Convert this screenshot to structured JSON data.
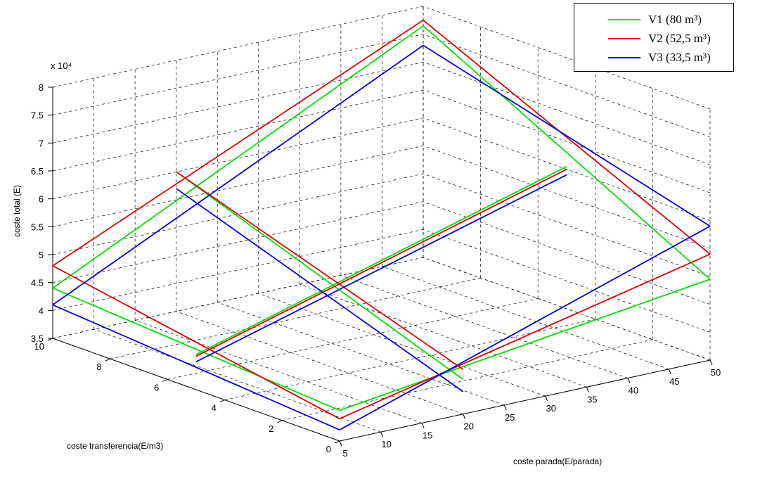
{
  "chart_data": {
    "type": "line3d",
    "title": "",
    "xlabel": "coste parada(E/parada)",
    "ylabel": "coste transferencia(E/m3)",
    "zlabel": "coste total (E)",
    "z_exponent_label": "x 10⁴",
    "xlim": [
      5,
      50
    ],
    "ylim": [
      0,
      10
    ],
    "zlim": [
      35000,
      80000
    ],
    "xticks": [
      "5",
      "10",
      "15",
      "20",
      "25",
      "30",
      "35",
      "40",
      "45",
      "50"
    ],
    "yticks": [
      "0",
      "2",
      "4",
      "6",
      "8",
      "10"
    ],
    "zticks": [
      "3.5",
      "4",
      "4.5",
      "5",
      "5.5",
      "6",
      "6.5",
      "7",
      "7.5",
      "8"
    ],
    "grid": true,
    "legend_position": "top-right",
    "colors": {
      "V1": "#00e000",
      "V2": "#e00000",
      "V3": "#0000e0"
    },
    "series": [
      {
        "name": "V1 (80 m³)",
        "color": "#00e000",
        "edges": [
          {
            "x": [
              5,
              50
            ],
            "y": [
              0,
              0
            ],
            "z": [
              40500,
              49500
            ]
          },
          {
            "x": [
              5,
              50
            ],
            "y": [
              10,
              10
            ],
            "z": [
              44000,
              76500
            ]
          },
          {
            "x": [
              5,
              5
            ],
            "y": [
              0,
              10
            ],
            "z": [
              40500,
              44000
            ]
          },
          {
            "x": [
              50,
              50
            ],
            "y": [
              0,
              10
            ],
            "z": [
              49500,
              76500
            ]
          },
          {
            "x": [
              20,
              20
            ],
            "y": [
              0,
              10
            ],
            "z": [
              41200,
              60000
            ]
          },
          {
            "x": [
              5,
              50
            ],
            "y": [
              5,
              5
            ],
            "z": [
              41300,
              60500
            ]
          }
        ]
      },
      {
        "name": "V2 (52,5 m³)",
        "color": "#e00000",
        "edges": [
          {
            "x": [
              5,
              50
            ],
            "y": [
              0,
              0
            ],
            "z": [
              39000,
              54000
            ]
          },
          {
            "x": [
              5,
              50
            ],
            "y": [
              10,
              10
            ],
            "z": [
              48000,
              77500
            ]
          },
          {
            "x": [
              5,
              5
            ],
            "y": [
              0,
              10
            ],
            "z": [
              39000,
              48000
            ]
          },
          {
            "x": [
              50,
              50
            ],
            "y": [
              0,
              10
            ],
            "z": [
              54000,
              77500
            ]
          },
          {
            "x": [
              20,
              20
            ],
            "y": [
              0,
              10
            ],
            "z": [
              43000,
              60000
            ]
          },
          {
            "x": [
              5,
              50
            ],
            "y": [
              5,
              5
            ],
            "z": [
              41000,
              60000
            ]
          }
        ]
      },
      {
        "name": "V3 (33,5 m³)",
        "color": "#0000e0",
        "edges": [
          {
            "x": [
              5,
              50
            ],
            "y": [
              0,
              0
            ],
            "z": [
              37000,
              59000
            ]
          },
          {
            "x": [
              5,
              50
            ],
            "y": [
              10,
              10
            ],
            "z": [
              41000,
              73000
            ]
          },
          {
            "x": [
              5,
              5
            ],
            "y": [
              0,
              10
            ],
            "z": [
              37000,
              41000
            ]
          },
          {
            "x": [
              50,
              50
            ],
            "y": [
              0,
              10
            ],
            "z": [
              59000,
              73000
            ]
          },
          {
            "x": [
              20,
              20
            ],
            "y": [
              0,
              10
            ],
            "z": [
              39000,
              57000
            ]
          },
          {
            "x": [
              5,
              50
            ],
            "y": [
              5,
              5
            ],
            "z": [
              40000,
              59000
            ]
          }
        ]
      }
    ]
  },
  "legend": {
    "items": [
      {
        "label": "V1 (80 m³)",
        "color": "#00e000"
      },
      {
        "label": "V2 (52,5 m³)",
        "color": "#e00000"
      },
      {
        "label": "V3 (33,5 m³)",
        "color": "#0000e0"
      }
    ]
  }
}
